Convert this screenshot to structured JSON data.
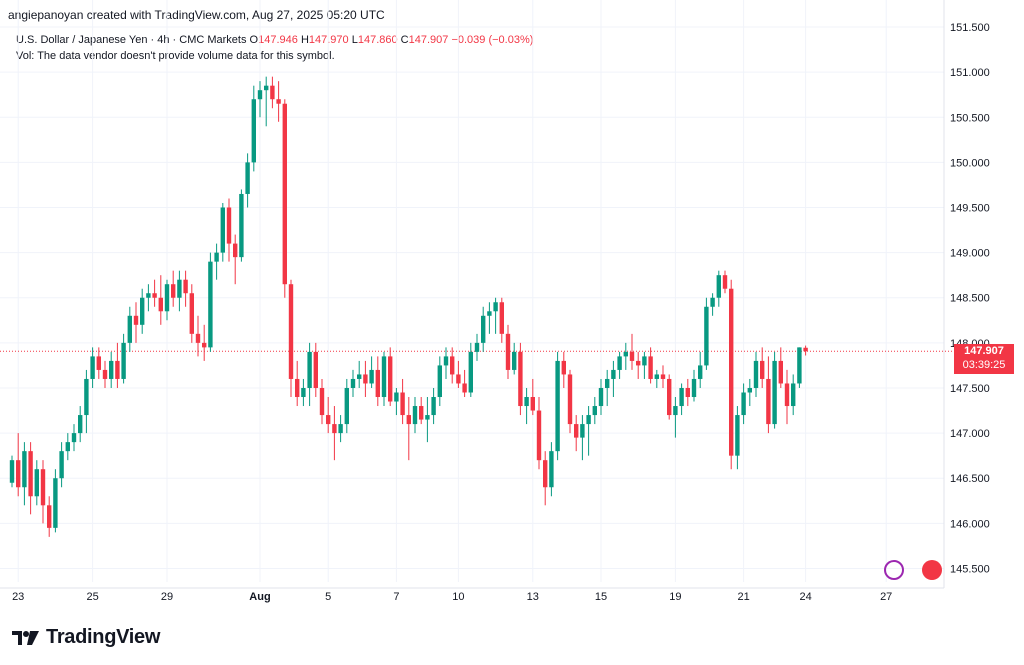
{
  "header": {
    "credit": "angiepanoyan created with TradingView.com, Aug 27, 2025 05:20 UTC"
  },
  "legend": {
    "symbol": "U.S. Dollar / Japanese Yen · 4h · CMC Markets",
    "o_label": "O",
    "o_val": "147.946",
    "h_label": "H",
    "h_val": "147.970",
    "l_label": "L",
    "l_val": "147.860",
    "c_label": "C",
    "c_val": "147.907",
    "change": "−0.039 (−0.03%)",
    "vol_note": "Vol: The data vendor doesn't provide volume data for this symbol."
  },
  "price_badge": {
    "price": "147.907",
    "countdown": "03:39:25"
  },
  "brand": {
    "name": "TradingView"
  },
  "colors": {
    "up": "#089981",
    "down": "#f23645",
    "grid": "#f0f3fa",
    "current_line": "#f23645"
  },
  "chart_data": {
    "type": "candlestick",
    "ylim": [
      145.35,
      151.6
    ],
    "y_ticks": [
      "145.500",
      "146.000",
      "146.500",
      "147.000",
      "147.500",
      "148.000",
      "148.500",
      "149.000",
      "149.500",
      "150.000",
      "150.500",
      "151.000",
      "151.500"
    ],
    "x_ticks": [
      {
        "label": "23",
        "bar": 1
      },
      {
        "label": "25",
        "bar": 13
      },
      {
        "label": "29",
        "bar": 25
      },
      {
        "label": "Aug",
        "bar": 40
      },
      {
        "label": "5",
        "bar": 51
      },
      {
        "label": "7",
        "bar": 62
      },
      {
        "label": "10",
        "bar": 72
      },
      {
        "label": "13",
        "bar": 84
      },
      {
        "label": "15",
        "bar": 95
      },
      {
        "label": "19",
        "bar": 107
      },
      {
        "label": "21",
        "bar": 118
      },
      {
        "label": "24",
        "bar": 128
      },
      {
        "label": "27",
        "bar": 141
      }
    ],
    "current_price": 147.907,
    "candles": [
      [
        146.45,
        146.75,
        146.4,
        146.7
      ],
      [
        146.7,
        147.0,
        146.3,
        146.4
      ],
      [
        146.4,
        146.9,
        146.2,
        146.8
      ],
      [
        146.8,
        146.9,
        146.1,
        146.3
      ],
      [
        146.3,
        146.7,
        146.2,
        146.6
      ],
      [
        146.6,
        146.7,
        146.0,
        146.2
      ],
      [
        146.2,
        146.3,
        145.85,
        145.95
      ],
      [
        145.95,
        146.6,
        145.9,
        146.5
      ],
      [
        146.5,
        146.9,
        146.4,
        146.8
      ],
      [
        146.8,
        147.0,
        146.7,
        146.9
      ],
      [
        146.9,
        147.1,
        146.8,
        147.0
      ],
      [
        147.0,
        147.3,
        146.9,
        147.2
      ],
      [
        147.2,
        147.7,
        147.0,
        147.6
      ],
      [
        147.6,
        147.95,
        147.5,
        147.85
      ],
      [
        147.85,
        147.95,
        147.6,
        147.7
      ],
      [
        147.7,
        147.8,
        147.5,
        147.6
      ],
      [
        147.6,
        147.9,
        147.5,
        147.8
      ],
      [
        147.8,
        148.0,
        147.5,
        147.6
      ],
      [
        147.6,
        148.1,
        147.55,
        148.0
      ],
      [
        148.0,
        148.4,
        147.9,
        148.3
      ],
      [
        148.3,
        148.45,
        148.0,
        148.2
      ],
      [
        148.2,
        148.6,
        148.1,
        148.5
      ],
      [
        148.5,
        148.65,
        148.35,
        148.55
      ],
      [
        148.55,
        148.7,
        148.4,
        148.5
      ],
      [
        148.5,
        148.75,
        148.2,
        148.35
      ],
      [
        148.35,
        148.7,
        148.25,
        148.65
      ],
      [
        148.65,
        148.8,
        148.4,
        148.5
      ],
      [
        148.5,
        148.8,
        148.35,
        148.7
      ],
      [
        148.7,
        148.8,
        148.4,
        148.55
      ],
      [
        148.55,
        148.65,
        148.0,
        148.1
      ],
      [
        148.1,
        148.3,
        147.85,
        148.0
      ],
      [
        148.0,
        148.2,
        147.8,
        147.95
      ],
      [
        147.95,
        149.0,
        147.9,
        148.9
      ],
      [
        148.9,
        149.1,
        148.7,
        149.0
      ],
      [
        149.0,
        149.55,
        148.9,
        149.5
      ],
      [
        149.5,
        149.6,
        148.9,
        149.1
      ],
      [
        149.1,
        149.2,
        148.65,
        148.95
      ],
      [
        148.95,
        149.7,
        148.9,
        149.65
      ],
      [
        149.65,
        150.1,
        149.5,
        150.0
      ],
      [
        150.0,
        150.85,
        149.9,
        150.7
      ],
      [
        150.7,
        150.9,
        150.5,
        150.8
      ],
      [
        150.8,
        150.95,
        150.4,
        150.85
      ],
      [
        150.85,
        150.95,
        150.6,
        150.7
      ],
      [
        150.7,
        150.9,
        150.45,
        150.65
      ],
      [
        150.65,
        150.7,
        148.5,
        148.65
      ],
      [
        148.65,
        148.7,
        147.4,
        147.6
      ],
      [
        147.6,
        147.8,
        147.3,
        147.4
      ],
      [
        147.4,
        147.6,
        147.3,
        147.5
      ],
      [
        147.5,
        148.0,
        147.3,
        147.9
      ],
      [
        147.9,
        148.0,
        147.4,
        147.5
      ],
      [
        147.5,
        147.6,
        147.1,
        147.2
      ],
      [
        147.2,
        147.4,
        147.0,
        147.1
      ],
      [
        147.1,
        147.3,
        146.7,
        147.0
      ],
      [
        147.0,
        147.2,
        146.9,
        147.1
      ],
      [
        147.1,
        147.6,
        147.0,
        147.5
      ],
      [
        147.5,
        147.7,
        147.4,
        147.6
      ],
      [
        147.6,
        147.8,
        147.5,
        147.65
      ],
      [
        147.65,
        147.8,
        147.4,
        147.55
      ],
      [
        147.55,
        147.85,
        147.5,
        147.7
      ],
      [
        147.7,
        147.85,
        147.3,
        147.4
      ],
      [
        147.4,
        147.9,
        147.3,
        147.85
      ],
      [
        147.85,
        147.95,
        147.3,
        147.35
      ],
      [
        147.35,
        147.5,
        147.2,
        147.45
      ],
      [
        147.45,
        147.6,
        147.1,
        147.2
      ],
      [
        147.2,
        147.4,
        146.7,
        147.1
      ],
      [
        147.1,
        147.4,
        147.0,
        147.3
      ],
      [
        147.3,
        147.4,
        147.1,
        147.15
      ],
      [
        147.15,
        147.4,
        146.9,
        147.2
      ],
      [
        147.2,
        147.5,
        147.1,
        147.4
      ],
      [
        147.4,
        147.85,
        147.3,
        147.75
      ],
      [
        147.75,
        147.95,
        147.6,
        147.85
      ],
      [
        147.85,
        147.95,
        147.55,
        147.65
      ],
      [
        147.65,
        147.8,
        147.5,
        147.55
      ],
      [
        147.55,
        147.7,
        147.4,
        147.45
      ],
      [
        147.45,
        148.0,
        147.4,
        147.9
      ],
      [
        147.9,
        148.1,
        147.8,
        148.0
      ],
      [
        148.0,
        148.4,
        147.9,
        148.3
      ],
      [
        148.3,
        148.45,
        148.1,
        148.35
      ],
      [
        148.35,
        148.5,
        148.1,
        148.45
      ],
      [
        148.45,
        148.5,
        148.0,
        148.1
      ],
      [
        148.1,
        148.2,
        147.6,
        147.7
      ],
      [
        147.7,
        148.0,
        147.65,
        147.9
      ],
      [
        147.9,
        148.0,
        147.2,
        147.3
      ],
      [
        147.3,
        147.5,
        147.1,
        147.4
      ],
      [
        147.4,
        147.6,
        147.2,
        147.25
      ],
      [
        147.25,
        147.4,
        146.6,
        146.7
      ],
      [
        146.7,
        146.8,
        146.2,
        146.4
      ],
      [
        146.4,
        146.9,
        146.3,
        146.8
      ],
      [
        146.8,
        147.9,
        146.7,
        147.8
      ],
      [
        147.8,
        147.9,
        147.5,
        147.65
      ],
      [
        147.65,
        147.7,
        147.0,
        147.1
      ],
      [
        147.1,
        147.2,
        146.8,
        146.95
      ],
      [
        146.95,
        147.2,
        146.7,
        147.1
      ],
      [
        147.1,
        147.3,
        146.75,
        147.2
      ],
      [
        147.2,
        147.4,
        147.1,
        147.3
      ],
      [
        147.3,
        147.6,
        147.2,
        147.5
      ],
      [
        147.5,
        147.7,
        147.3,
        147.6
      ],
      [
        147.6,
        147.8,
        147.4,
        147.7
      ],
      [
        147.7,
        147.9,
        147.6,
        147.85
      ],
      [
        147.85,
        148.0,
        147.7,
        147.9
      ],
      [
        147.9,
        148.1,
        147.7,
        147.8
      ],
      [
        147.8,
        147.9,
        147.6,
        147.75
      ],
      [
        147.75,
        147.9,
        147.6,
        147.85
      ],
      [
        147.85,
        147.95,
        147.55,
        147.6
      ],
      [
        147.6,
        147.7,
        147.5,
        147.65
      ],
      [
        147.65,
        147.75,
        147.5,
        147.6
      ],
      [
        147.6,
        147.65,
        147.15,
        147.2
      ],
      [
        147.2,
        147.4,
        146.95,
        147.3
      ],
      [
        147.3,
        147.55,
        147.2,
        147.5
      ],
      [
        147.5,
        147.6,
        147.3,
        147.4
      ],
      [
        147.4,
        147.7,
        147.35,
        147.6
      ],
      [
        147.6,
        147.9,
        147.5,
        147.75
      ],
      [
        147.75,
        148.5,
        147.7,
        148.4
      ],
      [
        148.4,
        148.55,
        148.3,
        148.5
      ],
      [
        148.5,
        148.8,
        148.4,
        148.75
      ],
      [
        148.75,
        148.8,
        148.55,
        148.6
      ],
      [
        148.6,
        148.7,
        146.6,
        146.75
      ],
      [
        146.75,
        147.3,
        146.6,
        147.2
      ],
      [
        147.2,
        147.55,
        147.1,
        147.45
      ],
      [
        147.45,
        147.6,
        147.3,
        147.5
      ],
      [
        147.5,
        147.9,
        147.4,
        147.8
      ],
      [
        147.8,
        147.95,
        147.5,
        147.6
      ],
      [
        147.6,
        147.85,
        147.0,
        147.1
      ],
      [
        147.1,
        147.9,
        147.05,
        147.8
      ],
      [
        147.8,
        147.95,
        147.5,
        147.55
      ],
      [
        147.55,
        147.7,
        147.1,
        147.3
      ],
      [
        147.3,
        147.65,
        147.2,
        147.55
      ],
      [
        147.55,
        147.95,
        147.5,
        147.95
      ],
      [
        147.946,
        147.97,
        147.86,
        147.907
      ]
    ]
  }
}
